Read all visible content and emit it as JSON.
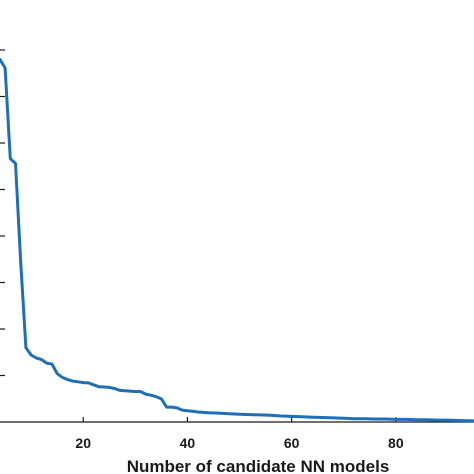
{
  "chart_data": {
    "type": "line",
    "title": "",
    "xlabel": "Number of candidate NN models",
    "ylabel": "",
    "xlim": [
      0,
      95
    ],
    "ylim": [
      0,
      1
    ],
    "xticks": [
      20,
      40,
      60,
      80
    ],
    "grid": false,
    "line_color": "#1f6fb8",
    "axis_color": "#1a1a1a",
    "series": [
      {
        "x": [
          4,
          5,
          6,
          7,
          8,
          9,
          10,
          11,
          12,
          13,
          14,
          15,
          16,
          17,
          18,
          19,
          20,
          21,
          22,
          23,
          24,
          25,
          26,
          27,
          28,
          29,
          30,
          31,
          32,
          33,
          34,
          35,
          36,
          37,
          38,
          39,
          40,
          41,
          42,
          44,
          46,
          48,
          50,
          52,
          54,
          56,
          58,
          60,
          62,
          64,
          66,
          68,
          70,
          72,
          74,
          76,
          78,
          80,
          82,
          84,
          86,
          88,
          90,
          92,
          95
        ],
        "y": [
          0.975,
          0.952,
          0.708,
          0.695,
          0.43,
          0.2,
          0.18,
          0.172,
          0.168,
          0.158,
          0.156,
          0.13,
          0.12,
          0.114,
          0.11,
          0.108,
          0.106,
          0.105,
          0.1,
          0.095,
          0.094,
          0.093,
          0.09,
          0.085,
          0.084,
          0.083,
          0.082,
          0.082,
          0.075,
          0.072,
          0.068,
          0.062,
          0.04,
          0.04,
          0.038,
          0.032,
          0.03,
          0.029,
          0.027,
          0.025,
          0.024,
          0.022,
          0.021,
          0.02,
          0.019,
          0.018,
          0.016,
          0.015,
          0.014,
          0.013,
          0.012,
          0.011,
          0.01,
          0.009,
          0.009,
          0.008,
          0.008,
          0.007,
          0.007,
          0.006,
          0.006,
          0.005,
          0.005,
          0.004,
          0.003
        ]
      }
    ]
  }
}
